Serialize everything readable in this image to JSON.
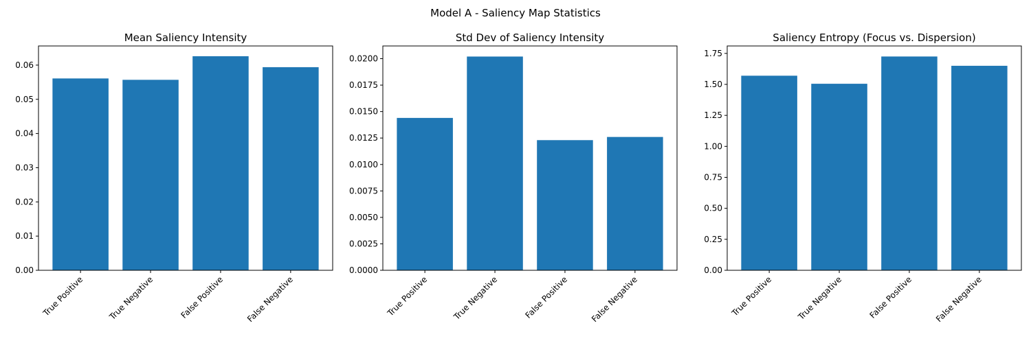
{
  "figure": {
    "suptitle": "Model A - Saliency Map Statistics"
  },
  "colors": {
    "bar": "#1f77b4",
    "axis": "#000000"
  },
  "chart_data": [
    {
      "type": "bar",
      "title": "Mean Saliency Intensity",
      "categories": [
        "True Positive",
        "True Negative",
        "False Positive",
        "False Negative"
      ],
      "values": [
        0.0561,
        0.0557,
        0.0626,
        0.0594
      ],
      "ylim": [
        0,
        0.0656
      ],
      "yticks": [
        0.0,
        0.01,
        0.02,
        0.03,
        0.04,
        0.05,
        0.06
      ],
      "ytick_labels": [
        "0.00",
        "0.01",
        "0.02",
        "0.03",
        "0.04",
        "0.05",
        "0.06"
      ],
      "xlabel": "",
      "ylabel": "",
      "grid": false
    },
    {
      "type": "bar",
      "title": "Std Dev of Saliency Intensity",
      "categories": [
        "True Positive",
        "True Negative",
        "False Positive",
        "False Negative"
      ],
      "values": [
        0.0144,
        0.0202,
        0.0123,
        0.0126
      ],
      "ylim": [
        0,
        0.0212
      ],
      "yticks": [
        0.0,
        0.0025,
        0.005,
        0.0075,
        0.01,
        0.0125,
        0.015,
        0.0175,
        0.02
      ],
      "ytick_labels": [
        "0.0000",
        "0.0025",
        "0.0050",
        "0.0075",
        "0.0100",
        "0.0125",
        "0.0150",
        "0.0175",
        "0.0200"
      ],
      "xlabel": "",
      "ylabel": "",
      "grid": false
    },
    {
      "type": "bar",
      "title": "Saliency Entropy (Focus vs. Dispersion)",
      "categories": [
        "True Positive",
        "True Negative",
        "False Positive",
        "False Negative"
      ],
      "values": [
        1.57,
        1.505,
        1.725,
        1.65
      ],
      "ylim": [
        0,
        1.81
      ],
      "yticks": [
        0.0,
        0.25,
        0.5,
        0.75,
        1.0,
        1.25,
        1.5,
        1.75
      ],
      "ytick_labels": [
        "0.00",
        "0.25",
        "0.50",
        "0.75",
        "1.00",
        "1.25",
        "1.50",
        "1.75"
      ],
      "xlabel": "",
      "ylabel": "",
      "grid": false
    }
  ]
}
